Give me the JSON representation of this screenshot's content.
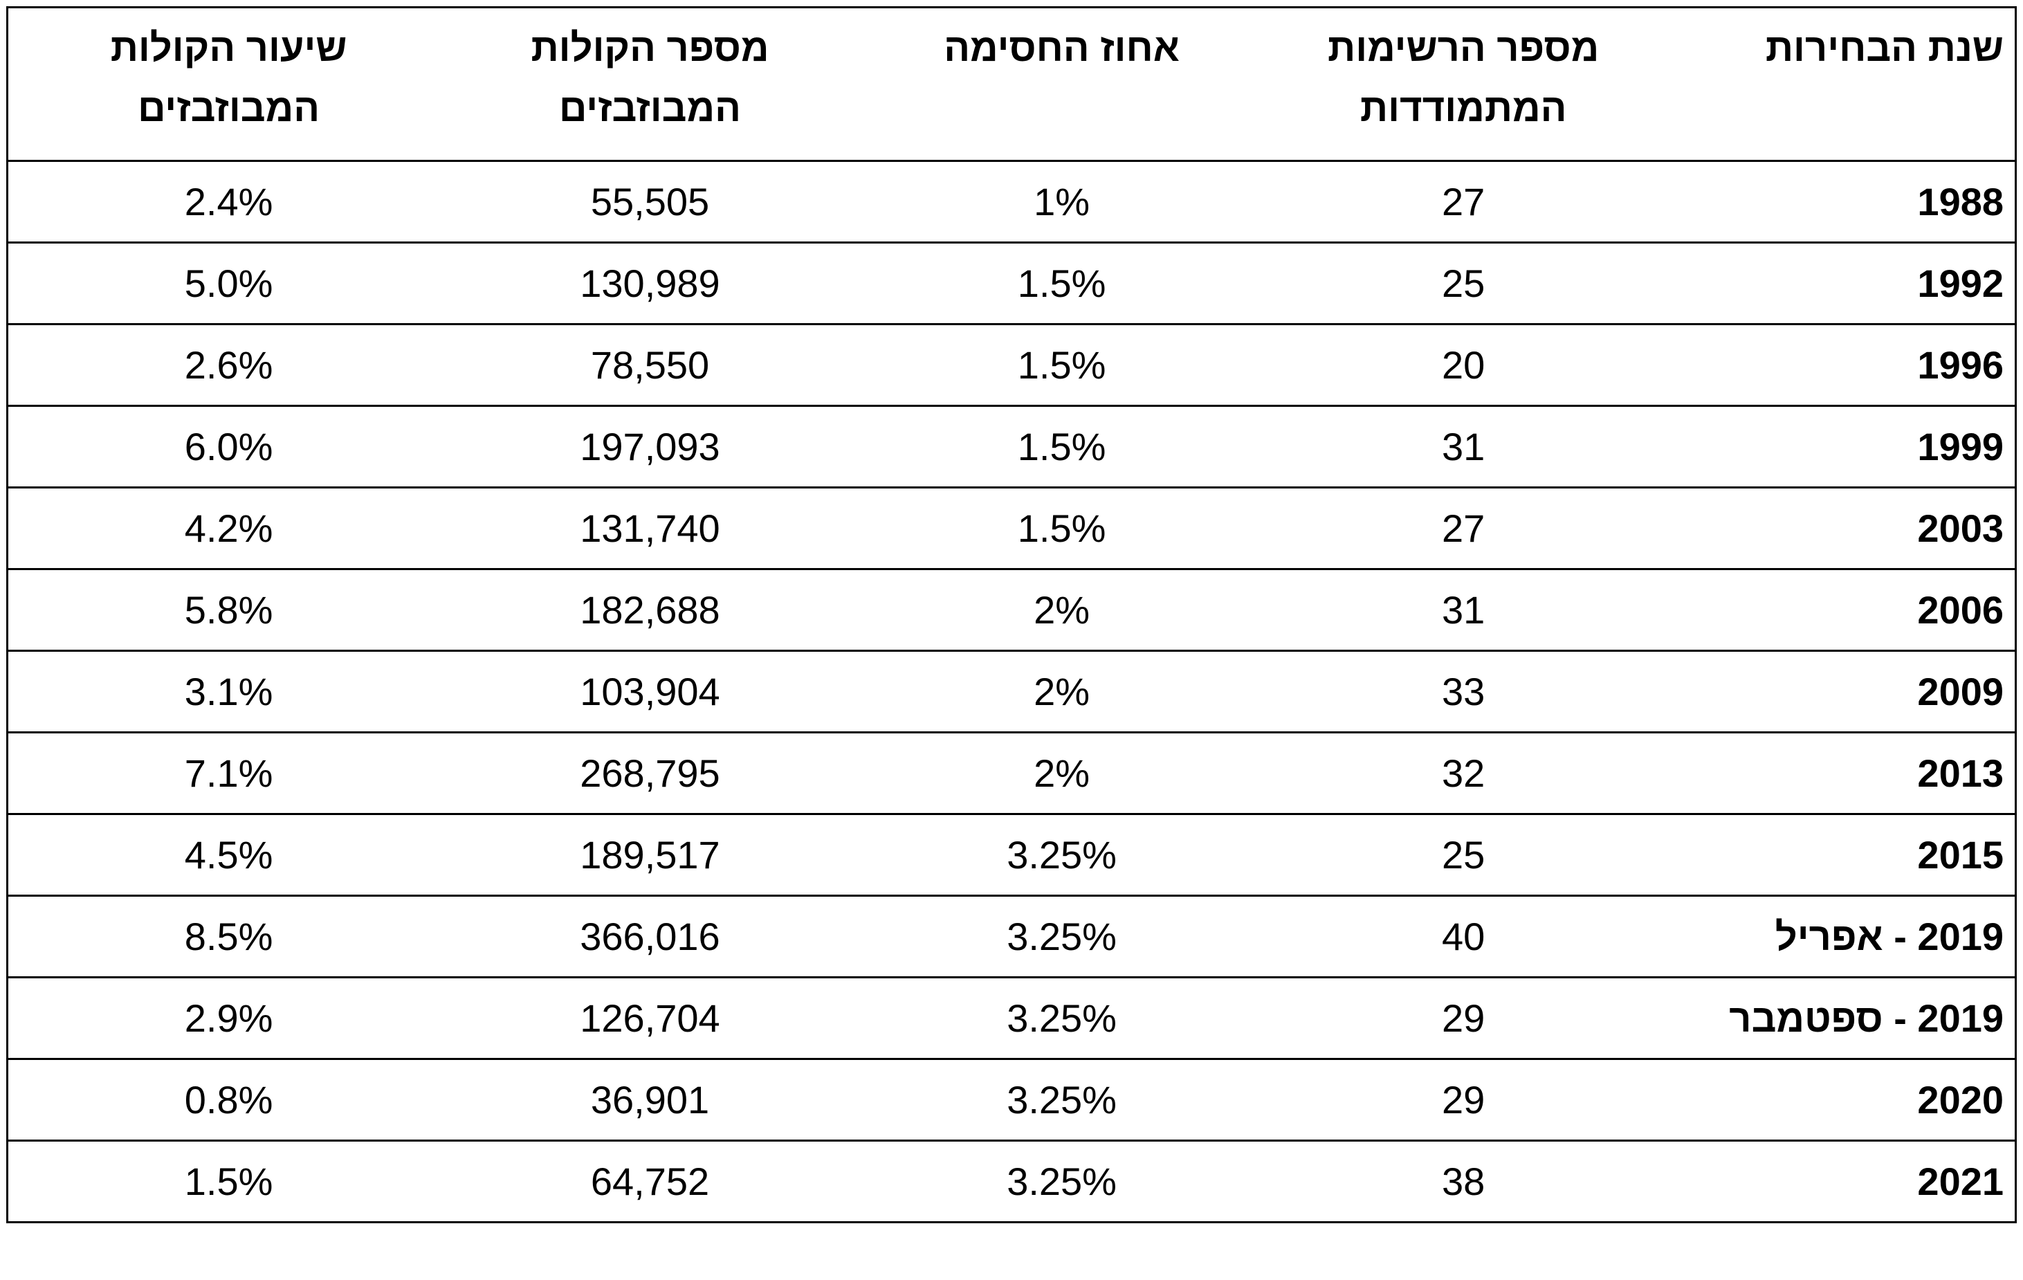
{
  "colors": {
    "text": "#000000",
    "border": "#000000",
    "background": "#ffffff"
  },
  "chart_data": {
    "type": "table",
    "direction": "rtl",
    "columns": [
      {
        "key": "year",
        "lines": [
          "שנת הבחירות"
        ]
      },
      {
        "key": "competing_lists",
        "lines": [
          "מספר הרשימות",
          "המתמודדות"
        ]
      },
      {
        "key": "threshold_percent",
        "lines": [
          "אחוז החסימה"
        ]
      },
      {
        "key": "wasted_votes",
        "lines": [
          "מספר הקולות",
          "המבוזבזים"
        ]
      },
      {
        "key": "wasted_votes_rate",
        "lines": [
          "שיעור הקולות",
          "המבוזבזים"
        ]
      }
    ],
    "rows": [
      {
        "year": "1988",
        "lists": "27",
        "threshold": "1%",
        "wasted_votes": "55,505",
        "wasted_rate": "2.4%"
      },
      {
        "year": "1992",
        "lists": "25",
        "threshold": "1.5%",
        "wasted_votes": "130,989",
        "wasted_rate": "5.0%"
      },
      {
        "year": "1996",
        "lists": "20",
        "threshold": "1.5%",
        "wasted_votes": "78,550",
        "wasted_rate": "2.6%"
      },
      {
        "year": "1999",
        "lists": "31",
        "threshold": "1.5%",
        "wasted_votes": "197,093",
        "wasted_rate": "6.0%"
      },
      {
        "year": "2003",
        "lists": "27",
        "threshold": "1.5%",
        "wasted_votes": "131,740",
        "wasted_rate": "4.2%"
      },
      {
        "year": "2006",
        "lists": "31",
        "threshold": "2%",
        "wasted_votes": "182,688",
        "wasted_rate": "5.8%"
      },
      {
        "year": "2009",
        "lists": "33",
        "threshold": "2%",
        "wasted_votes": "103,904",
        "wasted_rate": "3.1%"
      },
      {
        "year": "2013",
        "lists": "32",
        "threshold": "2%",
        "wasted_votes": "268,795",
        "wasted_rate": "7.1%"
      },
      {
        "year": "2015",
        "lists": "25",
        "threshold": "3.25%",
        "wasted_votes": "189,517",
        "wasted_rate": "4.5%"
      },
      {
        "year": "2019 - אפריל",
        "lists": "40",
        "threshold": "3.25%",
        "wasted_votes": "366,016",
        "wasted_rate": "8.5%"
      },
      {
        "year": "2019 - ספטמבר",
        "lists": "29",
        "threshold": "3.25%",
        "wasted_votes": "126,704",
        "wasted_rate": "2.9%"
      },
      {
        "year": "2020",
        "lists": "29",
        "threshold": "3.25%",
        "wasted_votes": "36,901",
        "wasted_rate": "0.8%"
      },
      {
        "year": "2021",
        "lists": "38",
        "threshold": "3.25%",
        "wasted_votes": "64,752",
        "wasted_rate": "1.5%"
      }
    ]
  }
}
